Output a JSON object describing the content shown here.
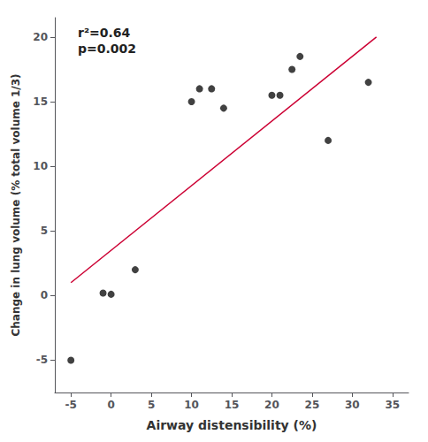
{
  "chart_data": {
    "type": "scatter",
    "xlabel": "Airway distensibility (%)",
    "ylabel": "Change in lung volume (% total volume 1/3)",
    "annotation": "r²=0.64\np=0.002",
    "series": [
      {
        "type": "line",
        "color": "#CC0033",
        "x": [
          -5,
          33
        ],
        "values": [
          1.0,
          20.0
        ]
      },
      {
        "type": "scatter",
        "color": "#111111",
        "x": [
          -5,
          -1,
          0,
          3,
          10,
          11,
          12.5,
          14,
          20,
          21,
          22.5,
          23.5,
          27,
          32
        ],
        "values": [
          -5,
          0.2,
          0.1,
          2,
          15,
          16,
          16,
          14.5,
          15.5,
          15.5,
          17.5,
          18.5,
          12,
          16.5
        ]
      }
    ],
    "xlim": [
      -7,
      37
    ],
    "ylim": [
      -7.5,
      21.5
    ],
    "xticks": [
      -5,
      0,
      5,
      10,
      15,
      20,
      25,
      30,
      35
    ],
    "yticks": [
      -5,
      0,
      5,
      10,
      15,
      20
    ],
    "grid": false
  }
}
